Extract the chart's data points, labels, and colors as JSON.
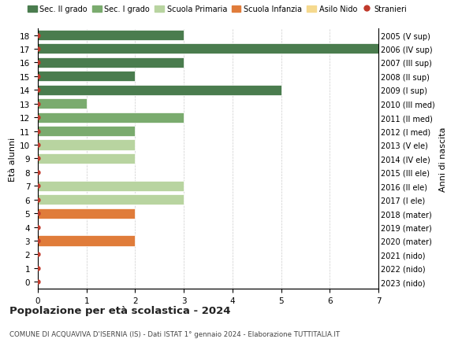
{
  "ages": [
    18,
    17,
    16,
    15,
    14,
    13,
    12,
    11,
    10,
    9,
    8,
    7,
    6,
    5,
    4,
    3,
    2,
    1,
    0
  ],
  "right_labels": [
    "2005 (V sup)",
    "2006 (IV sup)",
    "2007 (III sup)",
    "2008 (II sup)",
    "2009 (I sup)",
    "2010 (III med)",
    "2011 (II med)",
    "2012 (I med)",
    "2013 (V ele)",
    "2014 (IV ele)",
    "2015 (III ele)",
    "2016 (II ele)",
    "2017 (I ele)",
    "2018 (mater)",
    "2019 (mater)",
    "2020 (mater)",
    "2021 (nido)",
    "2022 (nido)",
    "2023 (nido)"
  ],
  "bar_values": [
    3,
    7,
    3,
    2,
    5,
    1,
    3,
    2,
    2,
    2,
    0,
    3,
    3,
    2,
    0,
    2,
    0,
    0,
    0
  ],
  "bar_colors": [
    "#4a7c4e",
    "#4a7c4e",
    "#4a7c4e",
    "#4a7c4e",
    "#4a7c4e",
    "#7aab6e",
    "#7aab6e",
    "#7aab6e",
    "#b8d4a0",
    "#b8d4a0",
    "#b8d4a0",
    "#b8d4a0",
    "#b8d4a0",
    "#e07c3a",
    "#e07c3a",
    "#e07c3a",
    "#f5d98e",
    "#f5d98e",
    "#f5d98e"
  ],
  "stranieri_dots": [
    18,
    17,
    16,
    15,
    14,
    13,
    12,
    11,
    10,
    9,
    8,
    7,
    6,
    5,
    4,
    3,
    2,
    1,
    0
  ],
  "dot_color": "#c0392b",
  "xlim": [
    0,
    7
  ],
  "xlabel_vals": [
    0,
    1,
    2,
    3,
    4,
    5,
    6,
    7
  ],
  "ylabel_left": "Età alunni",
  "ylabel_right": "Anni di nascita",
  "title": "Popolazione per età scolastica - 2024",
  "subtitle": "COMUNE DI ACQUAVIVA D'ISERNIA (IS) - Dati ISTAT 1° gennaio 2024 - Elaborazione TUTTITALIA.IT",
  "legend_items": [
    {
      "label": "Sec. II grado",
      "color": "#4a7c4e",
      "is_dot": false
    },
    {
      "label": "Sec. I grado",
      "color": "#7aab6e",
      "is_dot": false
    },
    {
      "label": "Scuola Primaria",
      "color": "#b8d4a0",
      "is_dot": false
    },
    {
      "label": "Scuola Infanzia",
      "color": "#e07c3a",
      "is_dot": false
    },
    {
      "label": "Asilo Nido",
      "color": "#f5d98e",
      "is_dot": false
    },
    {
      "label": "Stranieri",
      "color": "#c0392b",
      "is_dot": true
    }
  ],
  "bg_color": "#ffffff",
  "grid_color": "#cccccc",
  "bar_height": 0.75
}
